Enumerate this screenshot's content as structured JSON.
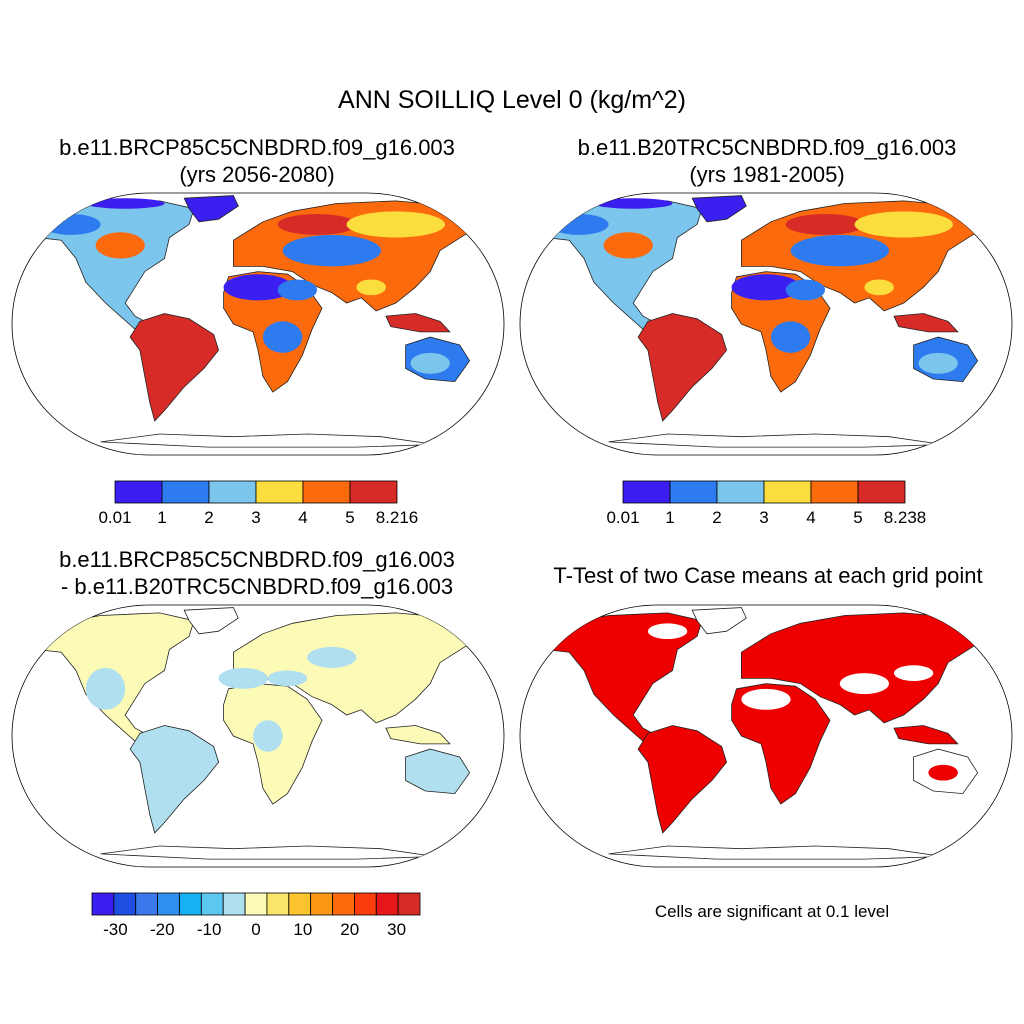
{
  "main_title": "ANN SOILLIQ Level 0 (kg/m^2)",
  "panels": [
    {
      "title_line1": "b.e11.BRCP85C5CNBDRD.f09_g16.003",
      "title_line2": "(yrs 2056-2080)"
    },
    {
      "title_line1": "b.e11.B20TRC5CNBDRD.f09_g16.003",
      "title_line2": "(yrs 1981-2005)"
    },
    {
      "title_line1": "b.e11.BRCP85C5CNBDRD.f09_g16.003",
      "title_line2": "- b.e11.B20TRC5CNBDRD.f09_g16.003"
    },
    {
      "title_line1": "T-Test of two Case means at each grid point"
    }
  ],
  "significance_note": "Cells are significant at 0.1 level",
  "chart_data": [
    {
      "type": "heatmap",
      "projection": "robinson",
      "title": "b.e11.BRCP85C5CNBDRD.f09_g16.003 (yrs 2056-2080)",
      "colorbar": {
        "tick_labels": [
          "0.01",
          "1",
          "2",
          "3",
          "4",
          "5",
          "8.216"
        ],
        "colors": [
          "#3a1ff0",
          "#2e7bef",
          "#7cc5ec",
          "#fbdd3e",
          "#fb6a0c",
          "#d72b27"
        ]
      },
      "dominant_regions": {
        "Sahara": "0.01-1",
        "Amazon": "5-8.216",
        "Southeast Asia": "5-8.216",
        "Arctic": "0.01-1"
      }
    },
    {
      "type": "heatmap",
      "projection": "robinson",
      "title": "b.e11.B20TRC5CNBDRD.f09_g16.003 (yrs 1981-2005)",
      "colorbar": {
        "tick_labels": [
          "0.01",
          "1",
          "2",
          "3",
          "4",
          "5",
          "8.238"
        ],
        "colors": [
          "#3a1ff0",
          "#2e7bef",
          "#7cc5ec",
          "#fbdd3e",
          "#fb6a0c",
          "#d72b27"
        ]
      },
      "dominant_regions": {
        "Sahara": "0.01-1",
        "Amazon": "5-8.238",
        "Southeast Asia": "5-8.238",
        "Arctic": "0.01-1"
      }
    },
    {
      "type": "heatmap",
      "projection": "robinson",
      "title": "b.e11.BRCP85C5CNBDRD.f09_g16.003 - b.e11.B20TRC5CNBDRD.f09_g16.003",
      "colorbar": {
        "tick_labels": [
          "-30",
          "-20",
          "-10",
          "0",
          "10",
          "20",
          "30"
        ],
        "colors": [
          "#3a1ff0",
          "#1f4fe0",
          "#3a78ec",
          "#2e8fef",
          "#17b0f0",
          "#5cc7f0",
          "#b0dff0",
          "#fbfab6",
          "#fbe46a",
          "#fbc32d",
          "#fb9a12",
          "#fb6a0c",
          "#fb3c0c",
          "#e6161a",
          "#d72b27"
        ]
      },
      "dominant_regions": {
        "North America": "0-10",
        "South America": "-10-0",
        "Africa": "0-10",
        "Eurasia": "0-10",
        "Australia": "-10-0"
      }
    },
    {
      "type": "heatmap",
      "projection": "robinson",
      "title": "T-Test of two Case means at each grid point",
      "legend": "Cells are significant at 0.1 level",
      "colors": [
        "#ee0000"
      ]
    }
  ]
}
